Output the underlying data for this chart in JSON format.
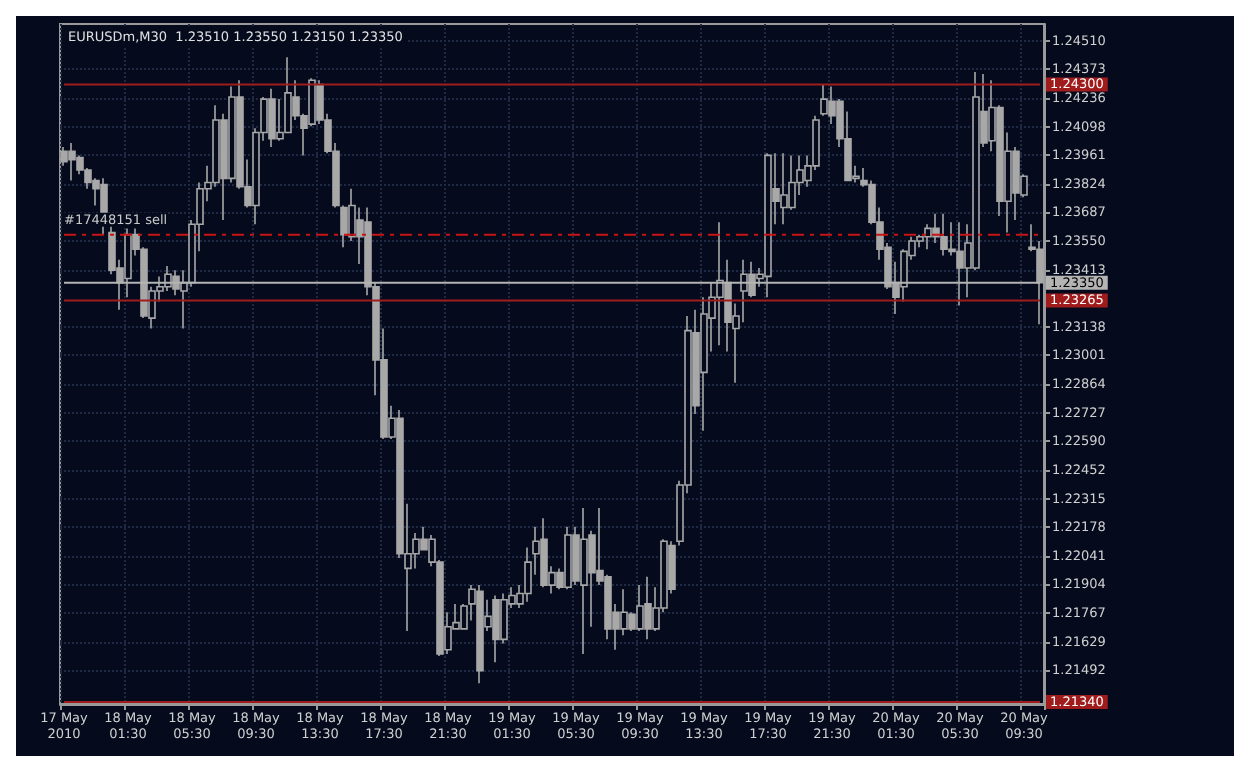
{
  "chart_data": {
    "type": "candlestick",
    "title": "EURUSDm,M30  1.23510 1.23550 1.23150 1.23350",
    "color": "#a8a8a8",
    "categories": [
      "17 May 2010",
      null,
      null,
      null,
      null,
      null,
      null,
      null,
      "18 May 01:30",
      null,
      null,
      null,
      null,
      null,
      null,
      null,
      "18 May 05:30",
      null,
      null,
      null,
      null,
      null,
      null,
      null,
      "18 May 09:30",
      null,
      null,
      null,
      null,
      null,
      null,
      null,
      "18 May 13:30",
      null,
      null,
      null,
      null,
      null,
      null,
      null,
      "18 May 17:30",
      null,
      null,
      null,
      null,
      null,
      null,
      null,
      "18 May 21:30",
      null,
      null,
      null,
      null,
      null,
      null,
      null,
      "19 May 01:30",
      null,
      null,
      null,
      null,
      null,
      null,
      null,
      "19 May 05:30",
      null,
      null,
      null,
      null,
      null,
      null,
      null,
      "19 May 09:30",
      null,
      null,
      null,
      null,
      null,
      null,
      null,
      "19 May 13:30",
      null,
      null,
      null,
      null,
      null,
      null,
      null,
      "19 May 17:30",
      null,
      null,
      null,
      null,
      null,
      null,
      null,
      "19 May 21:30",
      null,
      null,
      null,
      null,
      null,
      null,
      null,
      "20 May 01:30",
      null,
      null,
      null,
      null,
      null,
      null,
      null,
      "20 May 05:30",
      null,
      null,
      null,
      null,
      null,
      null,
      null,
      "20 May 09:30",
      null,
      null
    ],
    "ohlc": [
      [
        1.2398,
        1.24,
        1.2391,
        1.2393
      ],
      [
        1.2398,
        1.2402,
        1.2384,
        1.2394
      ],
      [
        1.2395,
        1.2396,
        1.2387,
        1.2389
      ],
      [
        1.2389,
        1.239,
        1.238,
        1.2383
      ],
      [
        1.2384,
        1.2385,
        1.2372,
        1.238
      ],
      [
        1.2382,
        1.2385,
        1.2358,
        1.2363
      ],
      [
        1.2359,
        1.2363,
        1.2339,
        1.2341
      ],
      [
        1.2342,
        1.2346,
        1.2322,
        1.2335
      ],
      [
        1.2337,
        1.2361,
        1.2328,
        1.2358
      ],
      [
        1.2358,
        1.2361,
        1.2348,
        1.2351
      ],
      [
        1.2351,
        1.2352,
        1.2318,
        1.2319
      ],
      [
        1.2318,
        1.2333,
        1.2313,
        1.2331
      ],
      [
        1.2331,
        1.2338,
        1.2326,
        1.2333
      ],
      [
        1.2333,
        1.2343,
        1.2331,
        1.2339
      ],
      [
        1.2338,
        1.2341,
        1.2329,
        1.2332
      ],
      [
        1.2331,
        1.2341,
        1.2313,
        1.2335
      ],
      [
        1.2335,
        1.2365,
        1.2333,
        1.2363
      ],
      [
        1.2363,
        1.2383,
        1.235,
        1.238
      ],
      [
        1.238,
        1.2391,
        1.2374,
        1.2383
      ],
      [
        1.2383,
        1.242,
        1.2381,
        1.2413
      ],
      [
        1.2413,
        1.2416,
        1.2365,
        1.2385
      ],
      [
        1.2385,
        1.2429,
        1.2383,
        1.2424
      ],
      [
        1.2424,
        1.2432,
        1.238,
        1.2381
      ],
      [
        1.2381,
        1.2394,
        1.2371,
        1.2372
      ],
      [
        1.2372,
        1.2409,
        1.2363,
        1.2407
      ],
      [
        1.2407,
        1.2424,
        1.2403,
        1.2423
      ],
      [
        1.2423,
        1.2428,
        1.24,
        1.2404
      ],
      [
        1.2404,
        1.2423,
        1.2403,
        1.2407
      ],
      [
        1.2407,
        1.2443,
        1.2407,
        1.2426
      ],
      [
        1.2424,
        1.2432,
        1.2413,
        1.2415
      ],
      [
        1.2415,
        1.2416,
        1.2396,
        1.2409
      ],
      [
        1.2411,
        1.2433,
        1.241,
        1.2432
      ],
      [
        1.243,
        1.2432,
        1.2411,
        1.2413
      ],
      [
        1.2413,
        1.2416,
        1.2397,
        1.2398
      ],
      [
        1.2398,
        1.2402,
        1.2371,
        1.2372
      ],
      [
        1.2371,
        1.2372,
        1.2352,
        1.2358
      ],
      [
        1.2357,
        1.238,
        1.2355,
        1.2372
      ],
      [
        1.2365,
        1.2371,
        1.2344,
        1.2357
      ],
      [
        1.2364,
        1.2371,
        1.2329,
        1.2333
      ],
      [
        1.2333,
        1.2335,
        1.2281,
        1.2298
      ],
      [
        1.2298,
        1.2313,
        1.226,
        1.2261
      ],
      [
        1.2261,
        1.2276,
        1.226,
        1.227
      ],
      [
        1.227,
        1.2274,
        1.2203,
        1.2205
      ],
      [
        1.2198,
        1.2229,
        1.2168,
        1.2205
      ],
      [
        1.2205,
        1.2215,
        1.2198,
        1.2212
      ],
      [
        1.2212,
        1.2218,
        1.2207,
        1.2207
      ],
      [
        1.2201,
        1.2214,
        1.2199,
        1.2212
      ],
      [
        1.2201,
        1.2202,
        1.2156,
        1.2157
      ],
      [
        1.2159,
        1.2177,
        1.2157,
        1.217
      ],
      [
        1.2169,
        1.2181,
        1.2169,
        1.2172
      ],
      [
        1.2169,
        1.2181,
        1.2169,
        1.218
      ],
      [
        1.2181,
        1.219,
        1.2173,
        1.2188
      ],
      [
        1.2187,
        1.219,
        1.2143,
        1.2149
      ],
      [
        1.217,
        1.2183,
        1.2168,
        1.2175
      ],
      [
        1.2183,
        1.2185,
        1.2153,
        1.2164
      ],
      [
        1.2164,
        1.2186,
        1.2162,
        1.2183
      ],
      [
        1.2181,
        1.2189,
        1.2179,
        1.2185
      ],
      [
        1.2181,
        1.219,
        1.2179,
        1.2186
      ],
      [
        1.2186,
        1.2208,
        1.2182,
        1.2201
      ],
      [
        1.2205,
        1.2218,
        1.2195,
        1.2211
      ],
      [
        1.2212,
        1.2222,
        1.2189,
        1.219
      ],
      [
        1.219,
        1.2199,
        1.2186,
        1.2196
      ],
      [
        1.2196,
        1.2198,
        1.2188,
        1.2189
      ],
      [
        1.2189,
        1.2218,
        1.2188,
        1.2214
      ],
      [
        1.2214,
        1.2218,
        1.219,
        1.2192
      ],
      [
        1.219,
        1.2227,
        1.2157,
        1.2212
      ],
      [
        1.2214,
        1.2216,
        1.217,
        1.2196
      ],
      [
        1.2197,
        1.2227,
        1.219,
        1.2192
      ],
      [
        1.2194,
        1.2195,
        1.2164,
        1.2169
      ],
      [
        1.2177,
        1.2181,
        1.2159,
        1.2169
      ],
      [
        1.2169,
        1.2188,
        1.2166,
        1.2177
      ],
      [
        1.2176,
        1.2177,
        1.2168,
        1.2169
      ],
      [
        1.2169,
        1.219,
        1.2168,
        1.218
      ],
      [
        1.2181,
        1.2194,
        1.2164,
        1.2169
      ],
      [
        1.2169,
        1.2189,
        1.2168,
        1.2179
      ],
      [
        1.2179,
        1.2212,
        1.2177,
        1.2211
      ],
      [
        1.2209,
        1.2211,
        1.2186,
        1.2188
      ],
      [
        1.2211,
        1.224,
        1.2209,
        1.2238
      ],
      [
        1.2238,
        1.2319,
        1.2234,
        1.2312
      ],
      [
        1.2311,
        1.2322,
        1.2272,
        1.2276
      ],
      [
        1.2292,
        1.2328,
        1.2264,
        1.232
      ],
      [
        1.2318,
        1.2335,
        1.2302,
        1.2328
      ],
      [
        1.2328,
        1.2364,
        1.2305,
        1.2336
      ],
      [
        1.2335,
        1.2346,
        1.2302,
        1.2316
      ],
      [
        1.2313,
        1.2325,
        1.2287,
        1.2319
      ],
      [
        1.2331,
        1.2346,
        1.2316,
        1.2339
      ],
      [
        1.2339,
        1.2345,
        1.2328,
        1.2329
      ],
      [
        1.2337,
        1.2342,
        1.2333,
        1.2339
      ],
      [
        1.2338,
        1.2397,
        1.2328,
        1.2396
      ],
      [
        1.238,
        1.2397,
        1.2363,
        1.2374
      ],
      [
        1.2371,
        1.2397,
        1.2363,
        1.2377
      ],
      [
        1.2371,
        1.2396,
        1.237,
        1.2383
      ],
      [
        1.2383,
        1.2396,
        1.2377,
        1.2389
      ],
      [
        1.2384,
        1.2396,
        1.2381,
        1.2391
      ],
      [
        1.2391,
        1.2415,
        1.2389,
        1.2413
      ],
      [
        1.2416,
        1.243,
        1.2415,
        1.2423
      ],
      [
        1.2422,
        1.2429,
        1.2411,
        1.2415
      ],
      [
        1.2422,
        1.2423,
        1.24,
        1.2404
      ],
      [
        1.2404,
        1.2417,
        1.2384,
        1.2384
      ],
      [
        1.2385,
        1.2391,
        1.2383,
        1.2386
      ],
      [
        1.2384,
        1.239,
        1.2381,
        1.2382
      ],
      [
        1.2382,
        1.2384,
        1.2363,
        1.2364
      ],
      [
        1.2364,
        1.2371,
        1.2346,
        1.2351
      ],
      [
        1.2352,
        1.2354,
        1.2332,
        1.2333
      ],
      [
        1.2335,
        1.2345,
        1.232,
        1.2328
      ],
      [
        1.2333,
        1.2351,
        1.2326,
        1.235
      ],
      [
        1.2348,
        1.2357,
        1.2346,
        1.2355
      ],
      [
        1.2355,
        1.2358,
        1.2352,
        1.2357
      ],
      [
        1.2357,
        1.2363,
        1.2351,
        1.2361
      ],
      [
        1.2361,
        1.2368,
        1.2354,
        1.2357
      ],
      [
        1.2357,
        1.2368,
        1.2348,
        1.2351
      ],
      [
        1.2351,
        1.2364,
        1.2348,
        1.235
      ],
      [
        1.235,
        1.2364,
        1.2324,
        1.2342
      ],
      [
        1.2342,
        1.2363,
        1.2328,
        1.2354
      ],
      [
        1.2342,
        1.2436,
        1.2341,
        1.2424
      ],
      [
        1.2417,
        1.2435,
        1.24,
        1.2402
      ],
      [
        1.2403,
        1.2432,
        1.2398,
        1.2419
      ],
      [
        1.2419,
        1.242,
        1.2367,
        1.2374
      ],
      [
        1.2374,
        1.2407,
        1.2359,
        1.2398
      ],
      [
        1.2398,
        1.24,
        1.2365,
        1.2378
      ],
      [
        1.2377,
        1.2387,
        1.2376,
        1.2386
      ],
      [
        1.2352,
        1.2363,
        1.235,
        1.2351
      ],
      [
        1.2351,
        1.2355,
        1.2315,
        1.2335
      ]
    ],
    "ylim": [
      1.2133,
      1.2459
    ],
    "yticks": [
      {
        "value": 1.2451,
        "label": "1.24510"
      },
      {
        "value": 1.24373,
        "label": "1.24373"
      },
      {
        "value": 1.24236,
        "label": "1.24236"
      },
      {
        "value": 1.24098,
        "label": "1.24098"
      },
      {
        "value": 1.23961,
        "label": "1.23961"
      },
      {
        "value": 1.23824,
        "label": "1.23824"
      },
      {
        "value": 1.23687,
        "label": "1.23687"
      },
      {
        "value": 1.2355,
        "label": "1.23550"
      },
      {
        "value": 1.23413,
        "label": "1.23413"
      },
      {
        "value": 1.23138,
        "label": "1.23138"
      },
      {
        "value": 1.23001,
        "label": "1.23001"
      },
      {
        "value": 1.22864,
        "label": "1.22864"
      },
      {
        "value": 1.22727,
        "label": "1.22727"
      },
      {
        "value": 1.2259,
        "label": "1.22590"
      },
      {
        "value": 1.22452,
        "label": "1.22452"
      },
      {
        "value": 1.22315,
        "label": "1.22315"
      },
      {
        "value": 1.22178,
        "label": "1.22178"
      },
      {
        "value": 1.22041,
        "label": "1.22041"
      },
      {
        "value": 1.21904,
        "label": "1.21904"
      },
      {
        "value": 1.21767,
        "label": "1.21767"
      },
      {
        "value": 1.21629,
        "label": "1.21629"
      },
      {
        "value": 1.21492,
        "label": "1.21492"
      }
    ],
    "grid": true,
    "ref_lines": [
      {
        "axis": "y",
        "value": 1.243,
        "label": "1.24300",
        "color": "#a01c1c",
        "line_style": "solid"
      },
      {
        "axis": "y",
        "value": 1.2358,
        "label": "#17448151 sell",
        "color": "#c81414",
        "line_style": "dashed"
      },
      {
        "axis": "y",
        "value": 1.2335,
        "label": "1.23350",
        "color": "#b4b4b4",
        "line_style": "solid"
      },
      {
        "axis": "y",
        "value": 1.23265,
        "label": "1.23265",
        "color": "#a01c1c",
        "line_style": "solid"
      },
      {
        "axis": "y",
        "value": 1.2134,
        "label": "1.21340",
        "color": "#a01c1c",
        "line_style": "solid"
      }
    ]
  }
}
